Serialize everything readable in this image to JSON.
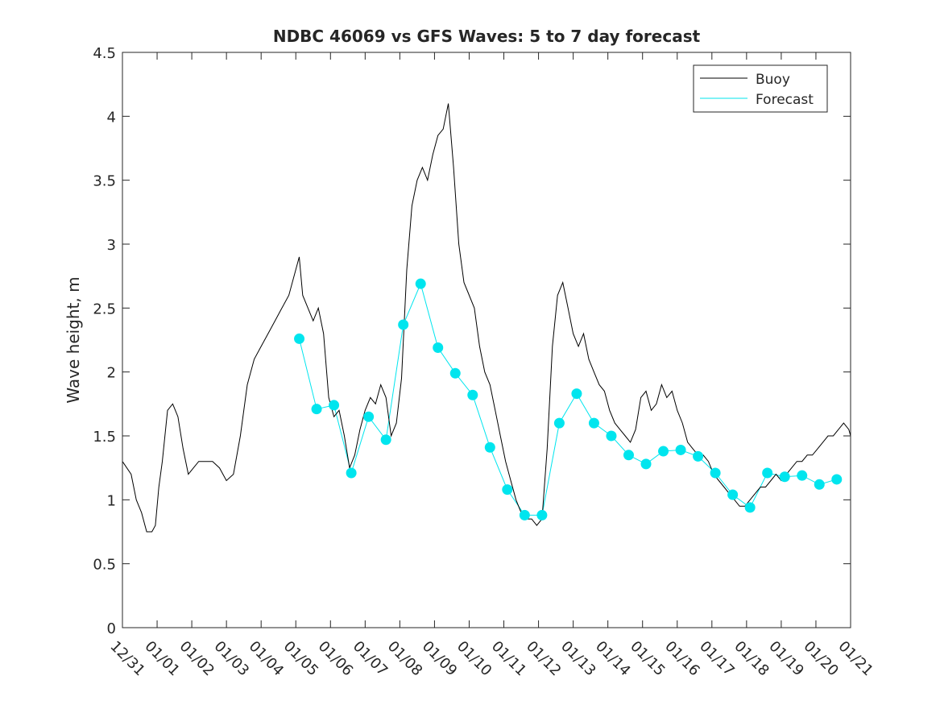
{
  "chart_data": {
    "type": "line",
    "title": "NDBC 46069 vs GFS Waves: 5 to 7 day forecast",
    "xlabel": "",
    "ylabel": "Wave height, m",
    "xlim": [
      0,
      21
    ],
    "ylim": [
      0,
      4.5
    ],
    "yticks": [
      0,
      0.5,
      1,
      1.5,
      2,
      2.5,
      3,
      3.5,
      4,
      4.5
    ],
    "ytick_labels": [
      "0",
      "0.5",
      "1",
      "1.5",
      "2",
      "2.5",
      "3",
      "3.5",
      "4",
      "4.5"
    ],
    "xtick_labels": [
      "12/31",
      "01/01",
      "01/02",
      "01/03",
      "01/04",
      "01/05",
      "01/06",
      "01/07",
      "01/08",
      "01/09",
      "01/10",
      "01/11",
      "01/12",
      "01/13",
      "01/14",
      "01/15",
      "01/16",
      "01/17",
      "01/18",
      "01/19",
      "01/20",
      "01/21"
    ],
    "legend": {
      "position": "top-right",
      "entries": [
        "Buoy",
        "Forecast"
      ]
    },
    "colors": {
      "buoy": "#000000",
      "forecast": "#00e5ee",
      "markers": "#00e5ee"
    },
    "series": [
      {
        "name": "Buoy",
        "x": [
          0,
          0.25,
          0.4,
          0.55,
          0.7,
          0.85,
          0.95,
          1.05,
          1.15,
          1.3,
          1.45,
          1.6,
          1.75,
          1.9,
          2.05,
          2.2,
          2.4,
          2.6,
          2.8,
          3.0,
          3.2,
          3.4,
          3.6,
          3.8,
          4.0,
          4.2,
          4.4,
          4.6,
          4.8,
          5.0,
          5.1,
          5.2,
          5.35,
          5.5,
          5.65,
          5.8,
          5.95,
          6.1,
          6.25,
          6.4,
          6.55,
          6.7,
          6.85,
          7.0,
          7.15,
          7.3,
          7.45,
          7.6,
          7.75,
          7.9,
          8.05,
          8.2,
          8.35,
          8.5,
          8.65,
          8.8,
          8.95,
          9.1,
          9.25,
          9.4,
          9.55,
          9.7,
          9.85,
          10.0,
          10.15,
          10.3,
          10.45,
          10.6,
          10.75,
          10.9,
          11.05,
          11.2,
          11.35,
          11.5,
          11.65,
          11.8,
          11.95,
          12.1,
          12.25,
          12.4,
          12.55,
          12.7,
          12.85,
          13.0,
          13.15,
          13.3,
          13.45,
          13.6,
          13.75,
          13.9,
          14.05,
          14.2,
          14.35,
          14.5,
          14.65,
          14.8,
          14.95,
          15.1,
          15.25,
          15.4,
          15.55,
          15.7,
          15.85,
          16.0,
          16.15,
          16.3,
          16.45,
          16.6,
          16.75,
          16.9,
          17.05,
          17.2,
          17.35,
          17.5,
          17.65,
          17.8,
          17.95,
          18.1,
          18.25,
          18.4,
          18.55,
          18.7,
          18.85,
          19.0,
          19.15,
          19.3,
          19.45,
          19.6,
          19.75,
          19.9,
          20.05,
          20.2,
          20.35,
          20.5,
          20.65,
          20.8,
          20.95,
          21.0
        ],
        "values": [
          1.3,
          1.2,
          1.0,
          0.9,
          0.75,
          0.75,
          0.8,
          1.1,
          1.3,
          1.7,
          1.75,
          1.65,
          1.4,
          1.2,
          1.25,
          1.3,
          1.3,
          1.3,
          1.25,
          1.15,
          1.2,
          1.5,
          1.9,
          2.1,
          2.2,
          2.3,
          2.4,
          2.5,
          2.6,
          2.8,
          2.9,
          2.6,
          2.5,
          2.4,
          2.5,
          2.3,
          1.8,
          1.65,
          1.7,
          1.5,
          1.25,
          1.35,
          1.55,
          1.7,
          1.8,
          1.75,
          1.9,
          1.8,
          1.5,
          1.6,
          1.95,
          2.8,
          3.3,
          3.5,
          3.6,
          3.5,
          3.7,
          3.85,
          3.9,
          4.1,
          3.6,
          3.0,
          2.7,
          2.6,
          2.5,
          2.2,
          2.0,
          1.9,
          1.7,
          1.5,
          1.3,
          1.15,
          1.0,
          0.9,
          0.85,
          0.85,
          0.8,
          0.85,
          1.4,
          2.2,
          2.6,
          2.7,
          2.5,
          2.3,
          2.2,
          2.3,
          2.1,
          2.0,
          1.9,
          1.85,
          1.7,
          1.6,
          1.55,
          1.5,
          1.45,
          1.55,
          1.8,
          1.85,
          1.7,
          1.75,
          1.9,
          1.8,
          1.85,
          1.7,
          1.6,
          1.45,
          1.4,
          1.35,
          1.35,
          1.3,
          1.2,
          1.15,
          1.1,
          1.05,
          1.0,
          0.95,
          0.95,
          1.0,
          1.05,
          1.1,
          1.1,
          1.15,
          1.2,
          1.15,
          1.2,
          1.25,
          1.3,
          1.3,
          1.35,
          1.35,
          1.4,
          1.45,
          1.5,
          1.5,
          1.55,
          1.6,
          1.55,
          1.5
        ]
      },
      {
        "name": "Forecast",
        "x": [
          5.1,
          5.6,
          6.1,
          6.6,
          7.1,
          7.6,
          8.1,
          8.6,
          9.1,
          9.6,
          10.1,
          10.6,
          11.1,
          11.6,
          12.1,
          12.6,
          13.1,
          13.6,
          14.1,
          14.6,
          15.1,
          15.6,
          16.1,
          16.6,
          17.1,
          17.6,
          18.1,
          18.6,
          19.1,
          19.6,
          20.1,
          20.6
        ],
        "values": [
          2.26,
          1.71,
          1.74,
          1.21,
          1.65,
          1.47,
          2.37,
          2.69,
          2.19,
          1.99,
          1.82,
          1.41,
          1.08,
          0.88,
          0.88,
          1.6,
          1.83,
          1.6,
          1.5,
          1.35,
          1.28,
          1.38,
          1.39,
          1.34,
          1.21,
          1.04,
          0.94,
          1.21,
          1.18,
          1.19,
          1.12,
          1.16
        ]
      }
    ]
  }
}
